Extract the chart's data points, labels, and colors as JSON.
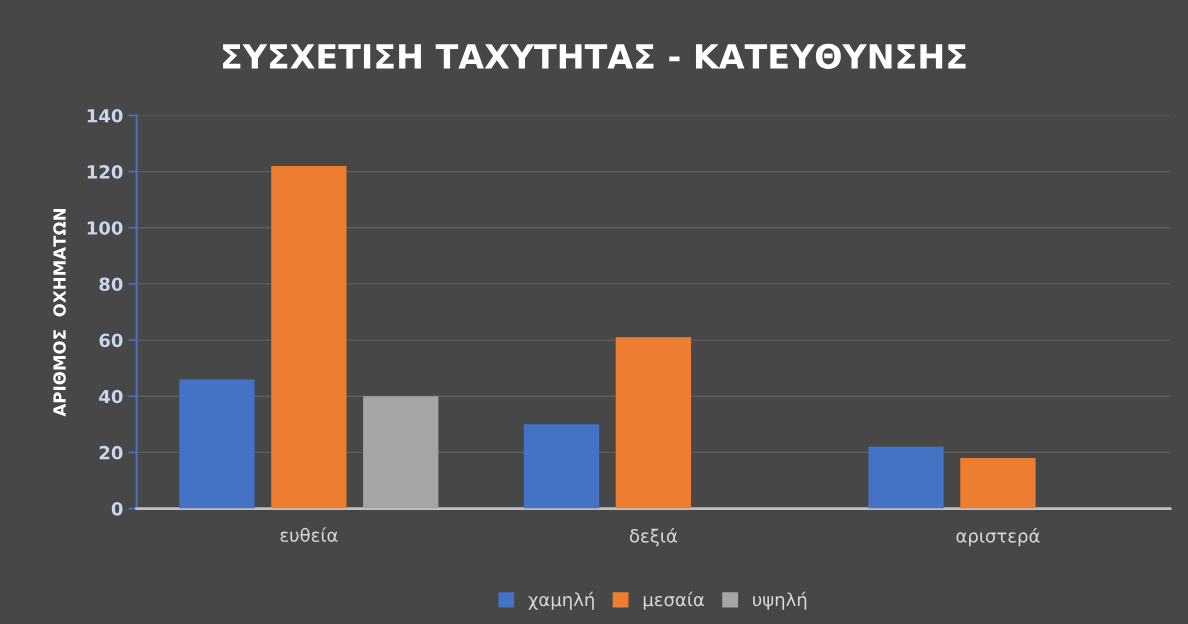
{
  "chart_data": {
    "type": "bar",
    "title": "ΣΥΣΧΕΤΙΣΗ ΤΑΧΥΤΗΤΑΣ - ΚΑΤΕΥΘΥΝΣΗΣ",
    "ylabel": "ΑΡΙΘΜΟΣ  ΟΧΗΜΑΤΩΝ",
    "categories": [
      "ευθεία",
      "δεξιά",
      "αριστερά"
    ],
    "series": [
      {
        "name": "χαμηλή",
        "color": "#4472c4",
        "values": [
          46,
          30,
          22
        ]
      },
      {
        "name": "μεσαία",
        "color": "#ed7d31",
        "values": [
          122,
          61,
          18
        ]
      },
      {
        "name": "υψηλή",
        "color": "#a5a5a5",
        "values": [
          40,
          null,
          null
        ]
      }
    ],
    "ylim": [
      0,
      140
    ],
    "yticks": [
      0,
      20,
      40,
      60,
      80,
      100,
      120,
      140
    ],
    "grid": "y",
    "legend": "bottom"
  }
}
